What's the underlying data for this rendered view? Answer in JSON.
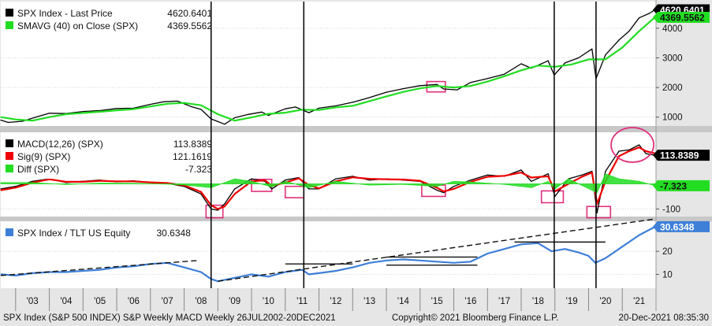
{
  "chart_data": [
    {
      "type": "line",
      "panel": "price",
      "legend": [
        {
          "label": "SPX Index - Last Price",
          "value": "4620.6401",
          "color": "#000000"
        },
        {
          "label": "SMAVG (40)  on Close (SPX)",
          "value": "4369.5562",
          "color": "#22dd22"
        }
      ],
      "last_value_tags": [
        "4620.6401",
        "4369.5562"
      ],
      "yticks": [
        1000,
        2000,
        3000,
        4000
      ],
      "ylim": [
        700,
        4900
      ],
      "series": [
        {
          "name": "SPX Index - Last Price",
          "color": "#000000",
          "x": [
            2002.56,
            2002.78,
            2003.2,
            2003.6,
            2004.0,
            2004.5,
            2005.0,
            2005.5,
            2006.0,
            2006.5,
            2007.0,
            2007.4,
            2007.8,
            2008.2,
            2008.5,
            2008.8,
            2009.0,
            2009.2,
            2009.5,
            2009.9,
            2010.3,
            2010.5,
            2011.0,
            2011.3,
            2011.7,
            2012.0,
            2012.5,
            2013.0,
            2013.5,
            2014.0,
            2014.5,
            2015.0,
            2015.5,
            2015.7,
            2016.1,
            2016.5,
            2017.0,
            2017.5,
            2018.0,
            2018.3,
            2018.8,
            2018.98,
            2019.3,
            2019.7,
            2020.1,
            2020.22,
            2020.5,
            2020.9,
            2021.2,
            2021.5,
            2021.8,
            2021.97
          ],
          "values": [
            900,
            820,
            860,
            1000,
            1130,
            1120,
            1190,
            1220,
            1290,
            1300,
            1430,
            1520,
            1540,
            1360,
            1260,
            940,
            850,
            760,
            980,
            1090,
            1170,
            1060,
            1280,
            1340,
            1150,
            1300,
            1380,
            1500,
            1660,
            1840,
            1960,
            2060,
            2100,
            1950,
            1920,
            2170,
            2300,
            2450,
            2800,
            2650,
            2900,
            2420,
            2830,
            3000,
            3300,
            2300,
            3100,
            3600,
            3900,
            4350,
            4500,
            4620
          ]
        },
        {
          "name": "SMAVG (40)  on Close (SPX)",
          "color": "#22dd22",
          "x": [
            2002.56,
            2003.0,
            2003.5,
            2004.0,
            2004.5,
            2005.0,
            2005.5,
            2006.0,
            2006.5,
            2007.0,
            2007.5,
            2008.0,
            2008.5,
            2009.0,
            2009.5,
            2010.0,
            2010.5,
            2011.0,
            2011.5,
            2012.0,
            2012.5,
            2013.0,
            2013.5,
            2014.0,
            2014.5,
            2015.0,
            2015.5,
            2016.0,
            2016.5,
            2017.0,
            2017.5,
            2018.0,
            2018.5,
            2019.0,
            2019.5,
            2020.0,
            2020.5,
            2021.0,
            2021.5,
            2021.97
          ],
          "values": [
            1000,
            920,
            880,
            1000,
            1100,
            1140,
            1180,
            1230,
            1270,
            1360,
            1450,
            1480,
            1400,
            1100,
            880,
            990,
            1110,
            1150,
            1250,
            1240,
            1330,
            1380,
            1540,
            1700,
            1850,
            1970,
            2050,
            2000,
            2050,
            2200,
            2380,
            2580,
            2740,
            2700,
            2780,
            2950,
            2950,
            3350,
            3900,
            4370
          ]
        }
      ],
      "highlight_boxes_x": [
        [
          2015.2,
          2015.75
        ]
      ],
      "highlight_boxes_y": [
        [
          1850,
          2200
        ]
      ]
    },
    {
      "type": "line",
      "panel": "macd",
      "legend": [
        {
          "label": "MACD(12,26) (SPX)",
          "value": "113.8389",
          "color": "#000000"
        },
        {
          "label": "Sig(9) (SPX)",
          "value": "121.1619",
          "color": "#ee0000"
        },
        {
          "label": "Diff (SPX)",
          "value": "-7.323",
          "color": "#22dd22"
        }
      ],
      "last_value_tags": [
        "113.8389",
        "-7.323"
      ],
      "yticks": [
        -100
      ],
      "ylim": [
        -130,
        205
      ],
      "zero_line": true,
      "series": [
        {
          "name": "MACD(12,26) (SPX)",
          "color": "#000000",
          "x": [
            2002.56,
            2003.0,
            2003.5,
            2004.0,
            2004.5,
            2005.0,
            2005.5,
            2006.0,
            2006.5,
            2007.0,
            2007.5,
            2008.0,
            2008.5,
            2008.8,
            2009.0,
            2009.2,
            2009.5,
            2010.0,
            2010.4,
            2010.6,
            2011.0,
            2011.4,
            2011.7,
            2012.0,
            2012.5,
            2013.0,
            2013.5,
            2014.0,
            2014.5,
            2015.0,
            2015.5,
            2015.7,
            2016.0,
            2016.5,
            2017.0,
            2017.5,
            2018.0,
            2018.3,
            2018.8,
            2019.0,
            2019.4,
            2019.8,
            2020.1,
            2020.25,
            2020.5,
            2020.9,
            2021.2,
            2021.5,
            2021.7,
            2021.97
          ],
          "values": [
            -20,
            -10,
            10,
            20,
            5,
            10,
            15,
            8,
            12,
            5,
            2,
            -10,
            -40,
            -100,
            -105,
            -80,
            -20,
            20,
            10,
            -20,
            15,
            25,
            -20,
            -20,
            20,
            30,
            15,
            20,
            15,
            10,
            -25,
            -35,
            -10,
            15,
            35,
            30,
            55,
            10,
            40,
            -50,
            20,
            35,
            50,
            -115,
            50,
            130,
            135,
            155,
            120,
            114
          ]
        },
        {
          "name": "Sig(9) (SPX)",
          "color": "#ee0000",
          "x": [
            2002.56,
            2003.0,
            2003.5,
            2004.0,
            2004.5,
            2005.0,
            2005.5,
            2006.0,
            2006.5,
            2007.0,
            2007.5,
            2008.0,
            2008.5,
            2008.8,
            2009.0,
            2009.2,
            2009.5,
            2010.0,
            2010.4,
            2010.6,
            2011.0,
            2011.4,
            2011.7,
            2012.0,
            2012.5,
            2013.0,
            2013.5,
            2014.0,
            2014.5,
            2015.0,
            2015.5,
            2015.7,
            2016.0,
            2016.5,
            2017.0,
            2017.5,
            2018.0,
            2018.3,
            2018.8,
            2019.0,
            2019.4,
            2019.8,
            2020.1,
            2020.25,
            2020.5,
            2020.9,
            2021.2,
            2021.5,
            2021.7,
            2021.97
          ],
          "values": [
            -25,
            -15,
            5,
            18,
            8,
            8,
            12,
            10,
            10,
            6,
            3,
            -6,
            -32,
            -85,
            -100,
            -90,
            -40,
            10,
            14,
            -8,
            5,
            22,
            -5,
            -18,
            10,
            26,
            20,
            18,
            17,
            12,
            -15,
            -30,
            -20,
            8,
            28,
            32,
            45,
            25,
            30,
            -30,
            0,
            28,
            45,
            -80,
            10,
            110,
            130,
            145,
            130,
            121
          ]
        },
        {
          "name": "Diff (SPX)",
          "color": "#22dd22",
          "x": [
            2002.56,
            2003.5,
            2004.5,
            2005.5,
            2006.5,
            2007.5,
            2008.0,
            2008.8,
            2009.0,
            2009.5,
            2010.0,
            2010.6,
            2011.0,
            2011.7,
            2012.5,
            2013.5,
            2014.5,
            2015.5,
            2016.0,
            2016.5,
            2017.5,
            2018.3,
            2018.8,
            2019.0,
            2019.4,
            2020.25,
            2020.5,
            2020.9,
            2021.5,
            2021.97
          ],
          "values": [
            5,
            5,
            -3,
            3,
            2,
            -1,
            -4,
            -15,
            -5,
            20,
            10,
            -12,
            10,
            -15,
            10,
            -5,
            -2,
            -10,
            10,
            7,
            -2,
            -15,
            10,
            -20,
            20,
            -35,
            40,
            20,
            10,
            -7
          ]
        }
      ],
      "highlight_boxes_x": [
        [
          2008.65,
          2009.15
        ],
        [
          2010.0,
          2010.6
        ],
        [
          2011.0,
          2011.55
        ],
        [
          2015.05,
          2015.75
        ],
        [
          2018.6,
          2019.25
        ],
        [
          2019.95,
          2020.65
        ]
      ],
      "highlight_boxes_y": [
        [
          -135,
          -85
        ],
        [
          -30,
          18
        ],
        [
          -55,
          -10
        ],
        [
          -50,
          -5
        ],
        [
          -75,
          -28
        ],
        [
          -135,
          -90
        ]
      ],
      "highlight_circle": {
        "x": 2021.3,
        "y": 155
      }
    },
    {
      "type": "line",
      "panel": "ratio",
      "legend": [
        {
          "label": "SPX Index / TLT US Equity",
          "value": "30.6348",
          "color": "#3e7fd8"
        }
      ],
      "last_value_tags": [
        "30.6348"
      ],
      "yticks": [
        10,
        20
      ],
      "ylim": [
        4,
        33
      ],
      "series": [
        {
          "name": "SPX Index / TLT US Equity",
          "color": "#3e7fd8",
          "x": [
            2002.56,
            2003.0,
            2003.5,
            2004.0,
            2004.5,
            2005.0,
            2005.5,
            2006.0,
            2006.5,
            2007.0,
            2007.5,
            2008.0,
            2008.5,
            2008.8,
            2009.0,
            2009.5,
            2010.0,
            2010.5,
            2011.0,
            2011.5,
            2011.7,
            2012.0,
            2012.5,
            2013.0,
            2013.5,
            2014.0,
            2014.5,
            2015.0,
            2015.5,
            2016.0,
            2016.5,
            2017.0,
            2017.5,
            2018.0,
            2018.5,
            2018.9,
            2019.3,
            2019.7,
            2020.0,
            2020.2,
            2020.5,
            2021.0,
            2021.5,
            2021.97
          ],
          "values": [
            10,
            9.5,
            10.5,
            11,
            11,
            11.5,
            12,
            13,
            13.5,
            14.5,
            15,
            13,
            11,
            8,
            7,
            8.5,
            10,
            9,
            11,
            12,
            10,
            10.5,
            11.5,
            13,
            15,
            16,
            16.5,
            16,
            15.5,
            15,
            15.5,
            19,
            21,
            23,
            23.5,
            20,
            21,
            19.5,
            18,
            15,
            17,
            22,
            27,
            30.6
          ]
        }
      ],
      "trend_lines": [
        {
          "x": [
            2002.56,
            2008.4
          ],
          "y": [
            9.5,
            16
          ],
          "dashed": true
        },
        {
          "x": [
            2009.0,
            2021.97
          ],
          "y": [
            7,
            34
          ],
          "dashed": true
        },
        {
          "x": [
            2011.0,
            2013.0
          ],
          "y": [
            14.5,
            14.5
          ],
          "dashed": false
        },
        {
          "x": [
            2014.0,
            2016.7
          ],
          "y": [
            17.5,
            17.5
          ],
          "dashed": false
        },
        {
          "x": [
            2014.0,
            2016.7
          ],
          "y": [
            14,
            14
          ],
          "dashed": false
        },
        {
          "x": [
            2017.8,
            2020.5
          ],
          "y": [
            24,
            24
          ],
          "dashed": false
        }
      ]
    }
  ],
  "vertical_markers_x": [
    2008.8,
    2011.55,
    2018.98,
    2020.22
  ],
  "x_axis": {
    "xlim": [
      2002.56,
      2022.0
    ],
    "labels": [
      "'03",
      "'04",
      "'05",
      "'06",
      "'07",
      "'08",
      "'09",
      "'10",
      "'11",
      "'12",
      "'13",
      "'14",
      "'15",
      "'16",
      "'17",
      "'18",
      "'19",
      "'20",
      "'21"
    ]
  },
  "footer": {
    "left": "SPX Index (S&P 500 INDEX) S&P Weekly MACD  Weekly 26JUL2002-20DEC2021",
    "center": "Copyright© 2021 Bloomberg Finance L.P.",
    "right": "20-Dec-2021 08:35:30"
  },
  "colors": {
    "bg": "#ffffff",
    "accent_box": "#e0307a",
    "axis_bg": "#e6e6e6"
  }
}
